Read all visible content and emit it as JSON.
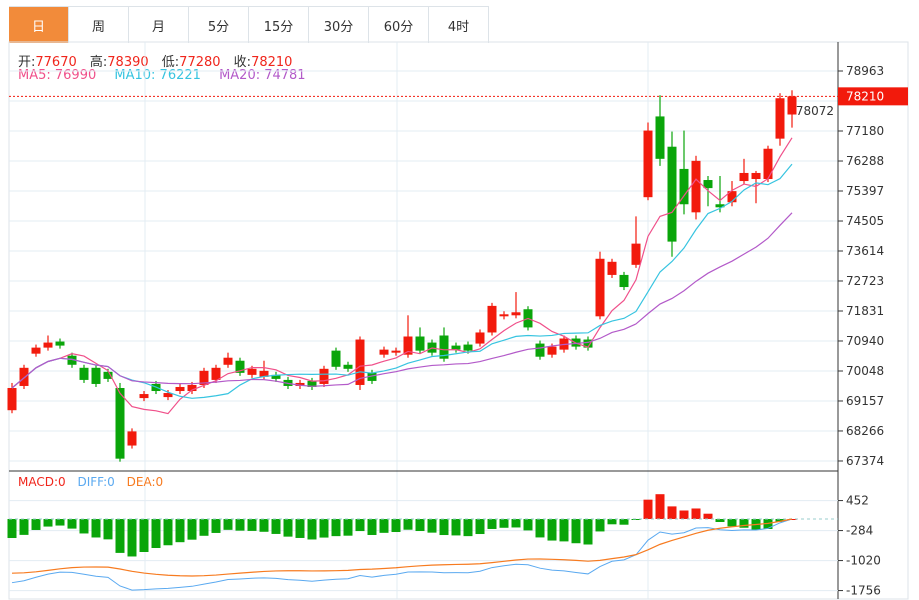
{
  "tabs": [
    "日",
    "周",
    "月",
    "5分",
    "15分",
    "30分",
    "60分",
    "4时"
  ],
  "active_tab": 0,
  "ohlc": {
    "open_label": "开:",
    "open": "77670",
    "high_label": "高:",
    "high": "78390",
    "low_label": "低:",
    "low": "77280",
    "close_label": "收:",
    "close": "78210"
  },
  "ma": {
    "ma5": "MA5: 76990",
    "ma10": "MA10: 76221",
    "ma20": "MA20: 74781"
  },
  "macd_labels": {
    "macd": "MACD:0",
    "diff": "DIFF:0",
    "dea": "DEA:0"
  },
  "last_price": "78210",
  "colors": {
    "up": "#f21a0c",
    "down": "#0aa50a",
    "ma5": "#f0508a",
    "ma10": "#37c4e0",
    "ma20": "#b35ac9",
    "diff": "#5aa9f0",
    "dea": "#f77b20",
    "accent": "#f28b3a"
  },
  "chart_data": {
    "type": "candlestick",
    "price_axis_ticks": [
      78963,
      78072,
      77180,
      76288,
      75397,
      74505,
      73614,
      72723,
      71831,
      70940,
      70048,
      69157,
      68266,
      67374
    ],
    "macd_axis_ticks": [
      452,
      -284,
      -1020,
      -1756
    ],
    "candles": [
      [
        68883,
        69693,
        68793,
        69543
      ],
      [
        69603,
        70233,
        69513,
        70143
      ],
      [
        70563,
        70833,
        70473,
        70743
      ],
      [
        70743,
        71103,
        70653,
        70893
      ],
      [
        70923,
        71013,
        70713,
        70803
      ],
      [
        70503,
        70593,
        70143,
        70233
      ],
      [
        70143,
        70233,
        69693,
        69783
      ],
      [
        70143,
        70233,
        69573,
        69663
      ],
      [
        70023,
        70113,
        69723,
        69813
      ],
      [
        69543,
        69693,
        67353,
        67443
      ],
      [
        67833,
        68343,
        67743,
        68253
      ],
      [
        69243,
        69453,
        69153,
        69363
      ],
      [
        69663,
        69753,
        69363,
        69453
      ],
      [
        69273,
        69483,
        69183,
        69393
      ],
      [
        69453,
        69663,
        69363,
        69573
      ],
      [
        69453,
        69723,
        69363,
        69633
      ],
      [
        69633,
        70143,
        69543,
        70053
      ],
      [
        69783,
        70233,
        69693,
        70143
      ],
      [
        70233,
        70593,
        70143,
        70443
      ],
      [
        70353,
        70443,
        69903,
        69993
      ],
      [
        69933,
        70203,
        69843,
        70113
      ],
      [
        69873,
        70353,
        69783,
        70053
      ],
      [
        69933,
        70023,
        69723,
        69813
      ],
      [
        69783,
        69873,
        69513,
        69603
      ],
      [
        69603,
        69783,
        69513,
        69693
      ],
      [
        69753,
        69843,
        69483,
        69573
      ],
      [
        69663,
        70203,
        69573,
        70113
      ],
      [
        70653,
        70743,
        70083,
        70173
      ],
      [
        70233,
        70323,
        70023,
        70113
      ],
      [
        69633,
        71073,
        69483,
        70983
      ],
      [
        69993,
        70083,
        69663,
        69753
      ],
      [
        70533,
        70773,
        70443,
        70683
      ],
      [
        70593,
        70743,
        70503,
        70653
      ],
      [
        70533,
        71703,
        70443,
        71073
      ],
      [
        71073,
        71343,
        70563,
        70653
      ],
      [
        70893,
        70983,
        70503,
        70593
      ],
      [
        71103,
        71343,
        70323,
        70413
      ],
      [
        70803,
        70893,
        70593,
        70683
      ],
      [
        70833,
        70923,
        70563,
        70653
      ],
      [
        70863,
        71283,
        70773,
        71193
      ],
      [
        71193,
        72073,
        71103,
        71983
      ],
      [
        71673,
        71823,
        71583,
        71733
      ],
      [
        71703,
        72393,
        71613,
        71793
      ],
      [
        71883,
        71973,
        71253,
        71343
      ],
      [
        70863,
        70953,
        70383,
        70473
      ],
      [
        70533,
        70863,
        70443,
        70773
      ],
      [
        70683,
        71103,
        70593,
        71013
      ],
      [
        71013,
        71103,
        70683,
        70773
      ],
      [
        70983,
        71073,
        70653,
        70743
      ],
      [
        71673,
        73593,
        71583,
        73383
      ],
      [
        72903,
        73383,
        72813,
        73293
      ],
      [
        72903,
        72993,
        72453,
        72543
      ],
      [
        73203,
        74643,
        73113,
        73833
      ],
      [
        75213,
        77433,
        75123,
        77193
      ],
      [
        77613,
        78243,
        76143,
        76353
      ],
      [
        76713,
        77163,
        73443,
        73893
      ],
      [
        76053,
        77193,
        74703,
        75003
      ],
      [
        74763,
        76443,
        74553,
        76293
      ],
      [
        75723,
        75843,
        74943,
        75483
      ],
      [
        75003,
        75843,
        74763,
        74913
      ],
      [
        75063,
        75693,
        74943,
        75393
      ],
      [
        75693,
        76353,
        75603,
        75933
      ],
      [
        75753,
        75993,
        75033,
        75933
      ],
      [
        75753,
        76743,
        75663,
        76653
      ],
      [
        76953,
        78303,
        76743,
        78153
      ],
      [
        77670,
        78390,
        77280,
        78210
      ]
    ],
    "candle_format": [
      "open",
      "high",
      "low",
      "close"
    ]
  }
}
